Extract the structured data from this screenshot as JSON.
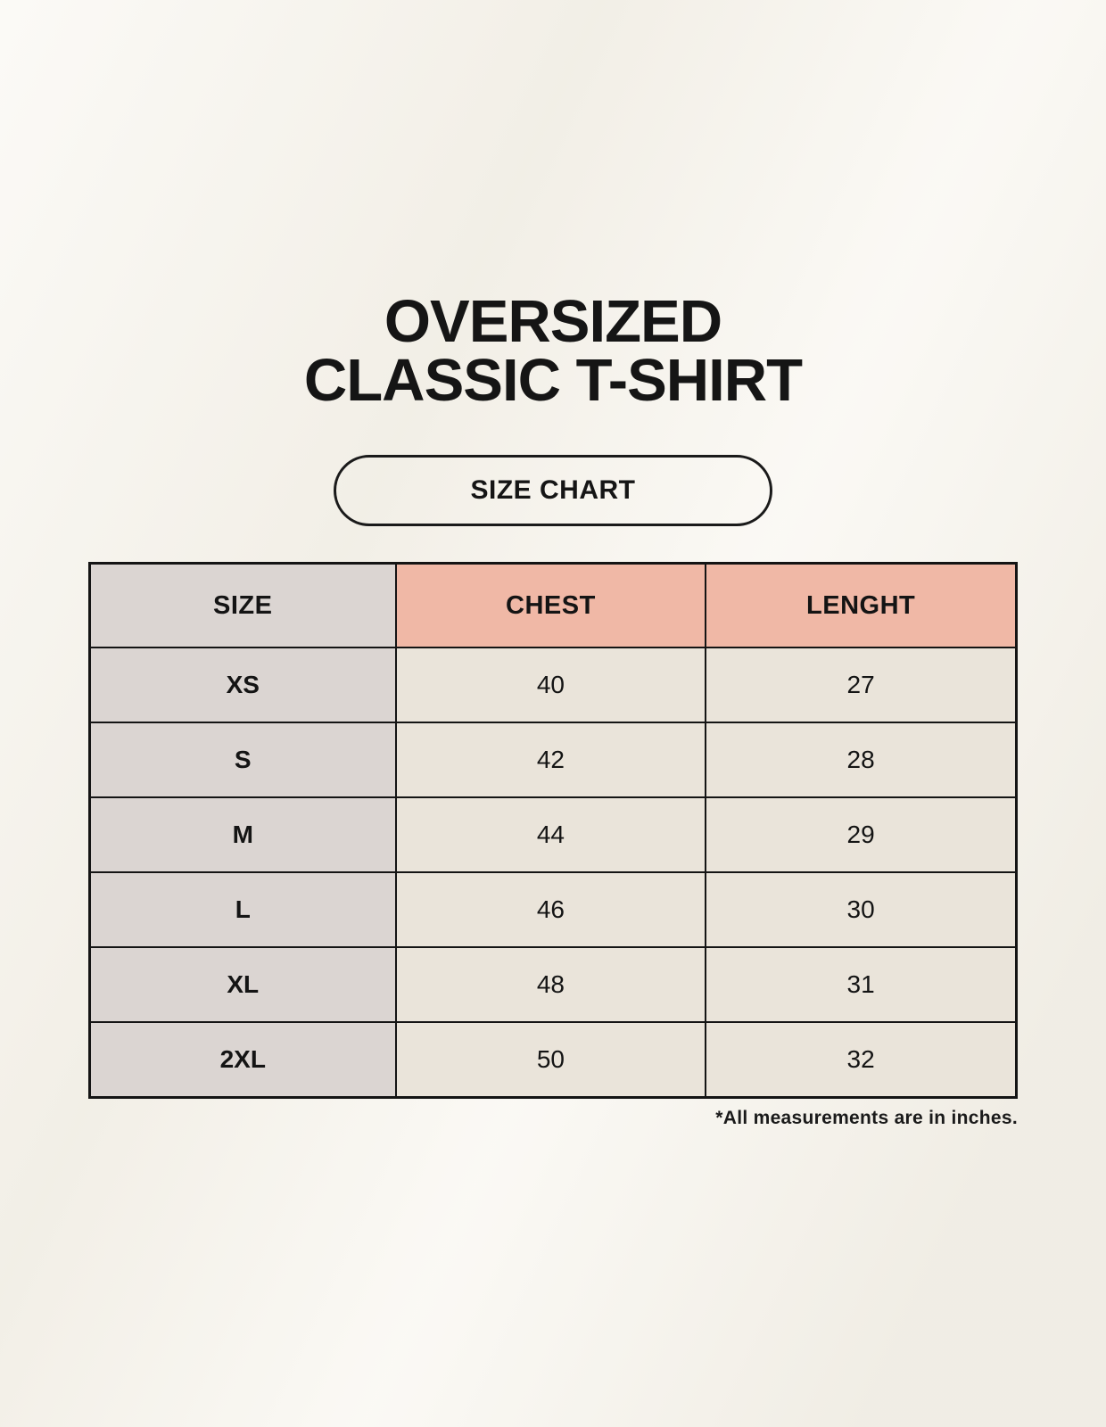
{
  "header": {
    "title_line1": "OVERSIZED",
    "title_line2": "CLASSIC T-SHIRT",
    "badge_label": "SIZE CHART"
  },
  "size_chart": {
    "headers": [
      "SIZE",
      "CHEST",
      "LENGHT"
    ],
    "rows": [
      {
        "size": "XS",
        "chest": "40",
        "length": "27"
      },
      {
        "size": "S",
        "chest": "42",
        "length": "28"
      },
      {
        "size": "M",
        "chest": "44",
        "length": "29"
      },
      {
        "size": "L",
        "chest": "46",
        "length": "30"
      },
      {
        "size": "XL",
        "chest": "48",
        "length": "31"
      },
      {
        "size": "2XL",
        "chest": "50",
        "length": "32"
      }
    ],
    "units_note": "*All measurements are in inches."
  },
  "colors": {
    "background": "#f7f4ec",
    "header_accent": "#f0b8a6",
    "size_column": "#dbd5d2",
    "data_cell": "#eae4da",
    "border": "#141414",
    "text": "#151515"
  }
}
